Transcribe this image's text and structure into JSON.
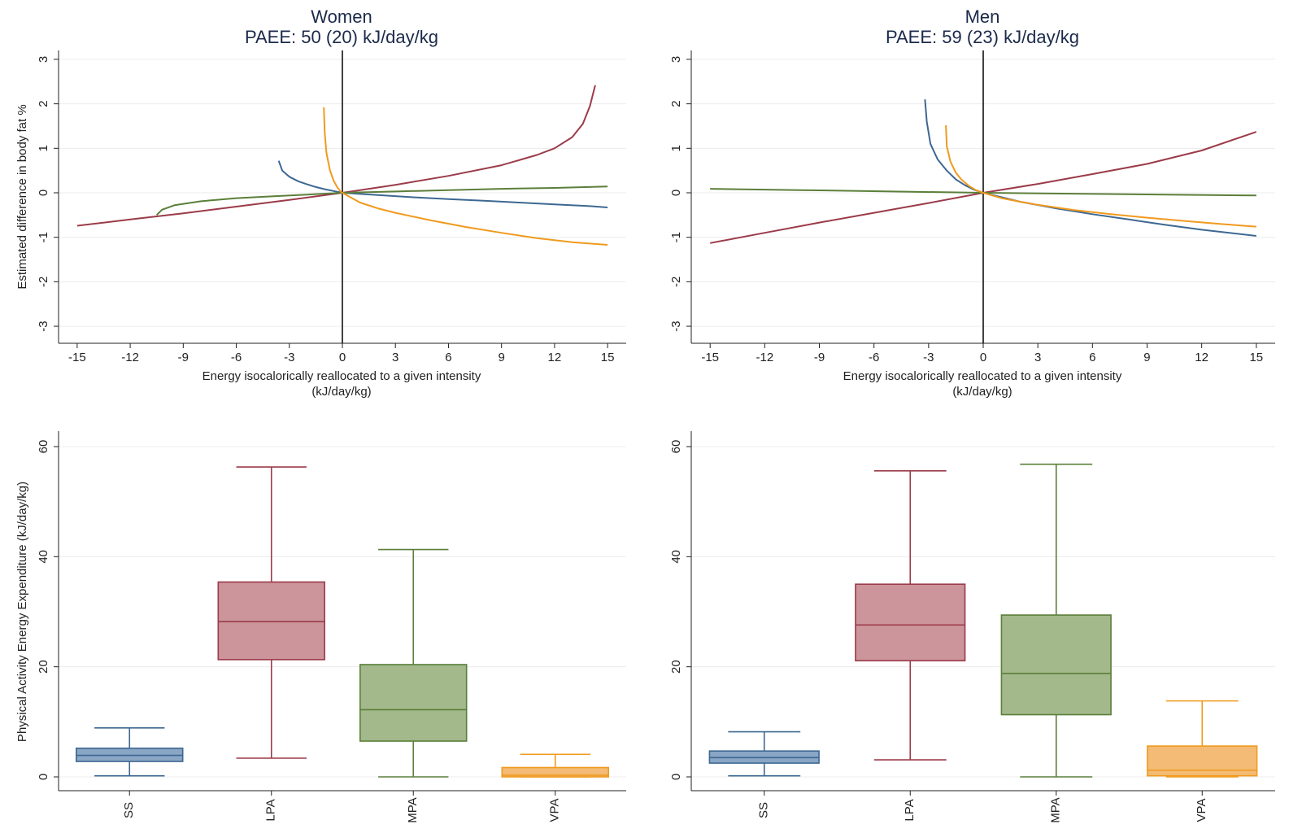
{
  "colors": {
    "SS": "#3d6891",
    "LPA": "#9b3b49",
    "MPA": "#5b7f3a",
    "VPA": "#f09a1e",
    "SS_fill": "#8aa6c5",
    "LPA_fill": "#cc949b",
    "MPA_fill": "#a3b98b",
    "VPA_fill": "#f3bb75",
    "grid": "#ececec",
    "axis": "#222222",
    "title": "#1b2a4a"
  },
  "chart_data": [
    {
      "type": "line",
      "panel": "women-isotemporal",
      "title": "Women",
      "subtitle": "PAEE: 50 (20) kJ/day/kg",
      "xlabel": "Energy isocalorically reallocated to a given intensity",
      "xlabel2": "(kJ/day/kg)",
      "ylabel": "Estimated difference in body fat %",
      "xlim": [
        -15.5,
        15.5
      ],
      "ylim": [
        -3.2,
        3.2
      ],
      "xticks": [
        "-15",
        "-12",
        "-9",
        "-6",
        "-3",
        "0",
        "3",
        "6",
        "9",
        "12",
        "15"
      ],
      "yticks": [
        "-3",
        "-2",
        "-1",
        "0",
        "1",
        "2",
        "3"
      ],
      "grid": true,
      "series": [
        {
          "key": "SS",
          "x": [
            -3.6,
            -3.4,
            -3.0,
            -2.5,
            -2,
            -1.5,
            -1,
            -0.5,
            0,
            2,
            4,
            6,
            8,
            10,
            12,
            14,
            15
          ],
          "y": [
            0.72,
            0.5,
            0.36,
            0.26,
            0.19,
            0.13,
            0.08,
            0.04,
            0,
            -0.05,
            -0.1,
            -0.14,
            -0.18,
            -0.22,
            -0.26,
            -0.3,
            -0.33
          ]
        },
        {
          "key": "LPA",
          "x": [
            -15,
            -12,
            -9,
            -6,
            -3,
            0,
            3,
            6,
            9,
            11,
            12,
            13,
            13.6,
            14,
            14.3
          ],
          "y": [
            -0.74,
            -0.6,
            -0.46,
            -0.31,
            -0.16,
            0,
            0.18,
            0.38,
            0.62,
            0.85,
            1.0,
            1.25,
            1.55,
            1.95,
            2.42
          ]
        },
        {
          "key": "MPA",
          "x": [
            -10.5,
            -10.2,
            -9.5,
            -8,
            -6,
            -4,
            -2,
            0,
            3,
            6,
            9,
            12,
            15
          ],
          "y": [
            -0.5,
            -0.38,
            -0.28,
            -0.19,
            -0.12,
            -0.08,
            -0.04,
            0,
            0.03,
            0.06,
            0.09,
            0.11,
            0.14
          ]
        },
        {
          "key": "VPA",
          "x": [
            -1.05,
            -1.0,
            -0.9,
            -0.7,
            -0.5,
            -0.3,
            -0.1,
            0,
            1,
            2,
            3,
            5,
            7,
            9,
            11,
            13,
            15
          ],
          "y": [
            1.92,
            1.35,
            0.9,
            0.5,
            0.28,
            0.13,
            0.03,
            0,
            -0.22,
            -0.35,
            -0.45,
            -0.62,
            -0.77,
            -0.9,
            -1.02,
            -1.11,
            -1.17
          ]
        }
      ]
    },
    {
      "type": "line",
      "panel": "men-isotemporal",
      "title": "Men",
      "subtitle": "PAEE: 59 (23) kJ/day/kg",
      "xlabel": "Energy isocalorically reallocated to a given intensity",
      "xlabel2": "(kJ/day/kg)",
      "ylabel": "",
      "xlim": [
        -15.5,
        15.5
      ],
      "ylim": [
        -3.2,
        3.2
      ],
      "xticks": [
        "-15",
        "-12",
        "-9",
        "-6",
        "-3",
        "0",
        "3",
        "6",
        "9",
        "12",
        "15"
      ],
      "yticks": [
        "-3",
        "-2",
        "-1",
        "0",
        "1",
        "2",
        "3"
      ],
      "grid": true,
      "series": [
        {
          "key": "SS",
          "x": [
            -3.2,
            -3.1,
            -2.9,
            -2.5,
            -2,
            -1.5,
            -1,
            -0.5,
            0,
            2,
            4,
            6,
            8,
            10,
            12,
            15
          ],
          "y": [
            2.1,
            1.6,
            1.1,
            0.75,
            0.5,
            0.3,
            0.17,
            0.07,
            0,
            -0.2,
            -0.35,
            -0.48,
            -0.6,
            -0.72,
            -0.83,
            -0.97
          ]
        },
        {
          "key": "LPA",
          "x": [
            -15,
            -12,
            -9,
            -6,
            -3,
            0,
            3,
            6,
            9,
            12,
            15
          ],
          "y": [
            -1.13,
            -0.9,
            -0.67,
            -0.45,
            -0.23,
            0,
            0.2,
            0.42,
            0.65,
            0.95,
            1.37
          ]
        },
        {
          "key": "MPA",
          "x": [
            -15,
            -10,
            -5,
            0,
            5,
            10,
            15
          ],
          "y": [
            0.09,
            0.06,
            0.03,
            0,
            -0.02,
            -0.04,
            -0.06
          ]
        },
        {
          "key": "VPA",
          "x": [
            -2.05,
            -2.0,
            -1.8,
            -1.5,
            -1.2,
            -0.8,
            -0.4,
            0,
            1,
            2,
            3,
            5,
            7,
            9,
            11,
            13,
            15
          ],
          "y": [
            1.52,
            1.05,
            0.7,
            0.45,
            0.3,
            0.16,
            0.06,
            0,
            -0.12,
            -0.2,
            -0.27,
            -0.39,
            -0.48,
            -0.56,
            -0.63,
            -0.7,
            -0.76
          ]
        }
      ]
    },
    {
      "type": "box",
      "panel": "women-boxplot",
      "ylabel": "Physical Activity Energy Expenditure (kJ/day/kg)",
      "ylim": [
        0,
        62
      ],
      "yticks": [
        "0",
        "20",
        "40",
        "60"
      ],
      "categories": [
        "SS",
        "LPA",
        "MPA",
        "VPA"
      ],
      "grid": true,
      "boxes": [
        {
          "key": "SS",
          "min": 0.2,
          "q1": 2.8,
          "median": 3.9,
          "q3": 5.2,
          "max": 8.9
        },
        {
          "key": "LPA",
          "min": 3.4,
          "q1": 21.3,
          "median": 28.2,
          "q3": 35.4,
          "max": 56.3
        },
        {
          "key": "MPA",
          "min": 0.0,
          "q1": 6.5,
          "median": 12.2,
          "q3": 20.4,
          "max": 41.3
        },
        {
          "key": "VPA",
          "min": 0.0,
          "q1": 0.0,
          "median": 0.3,
          "q3": 1.7,
          "max": 4.1
        }
      ]
    },
    {
      "type": "box",
      "panel": "men-boxplot",
      "ylabel": "",
      "ylim": [
        0,
        62
      ],
      "yticks": [
        "0",
        "20",
        "40",
        "60"
      ],
      "categories": [
        "SS",
        "LPA",
        "MPA",
        "VPA"
      ],
      "grid": true,
      "boxes": [
        {
          "key": "SS",
          "min": 0.2,
          "q1": 2.5,
          "median": 3.5,
          "q3": 4.7,
          "max": 8.2
        },
        {
          "key": "LPA",
          "min": 3.1,
          "q1": 21.1,
          "median": 27.6,
          "q3": 35.0,
          "max": 55.6
        },
        {
          "key": "MPA",
          "min": 0.0,
          "q1": 11.3,
          "median": 18.8,
          "q3": 29.4,
          "max": 56.8
        },
        {
          "key": "VPA",
          "min": 0.0,
          "q1": 0.2,
          "median": 1.2,
          "q3": 5.6,
          "max": 13.8
        }
      ]
    }
  ]
}
